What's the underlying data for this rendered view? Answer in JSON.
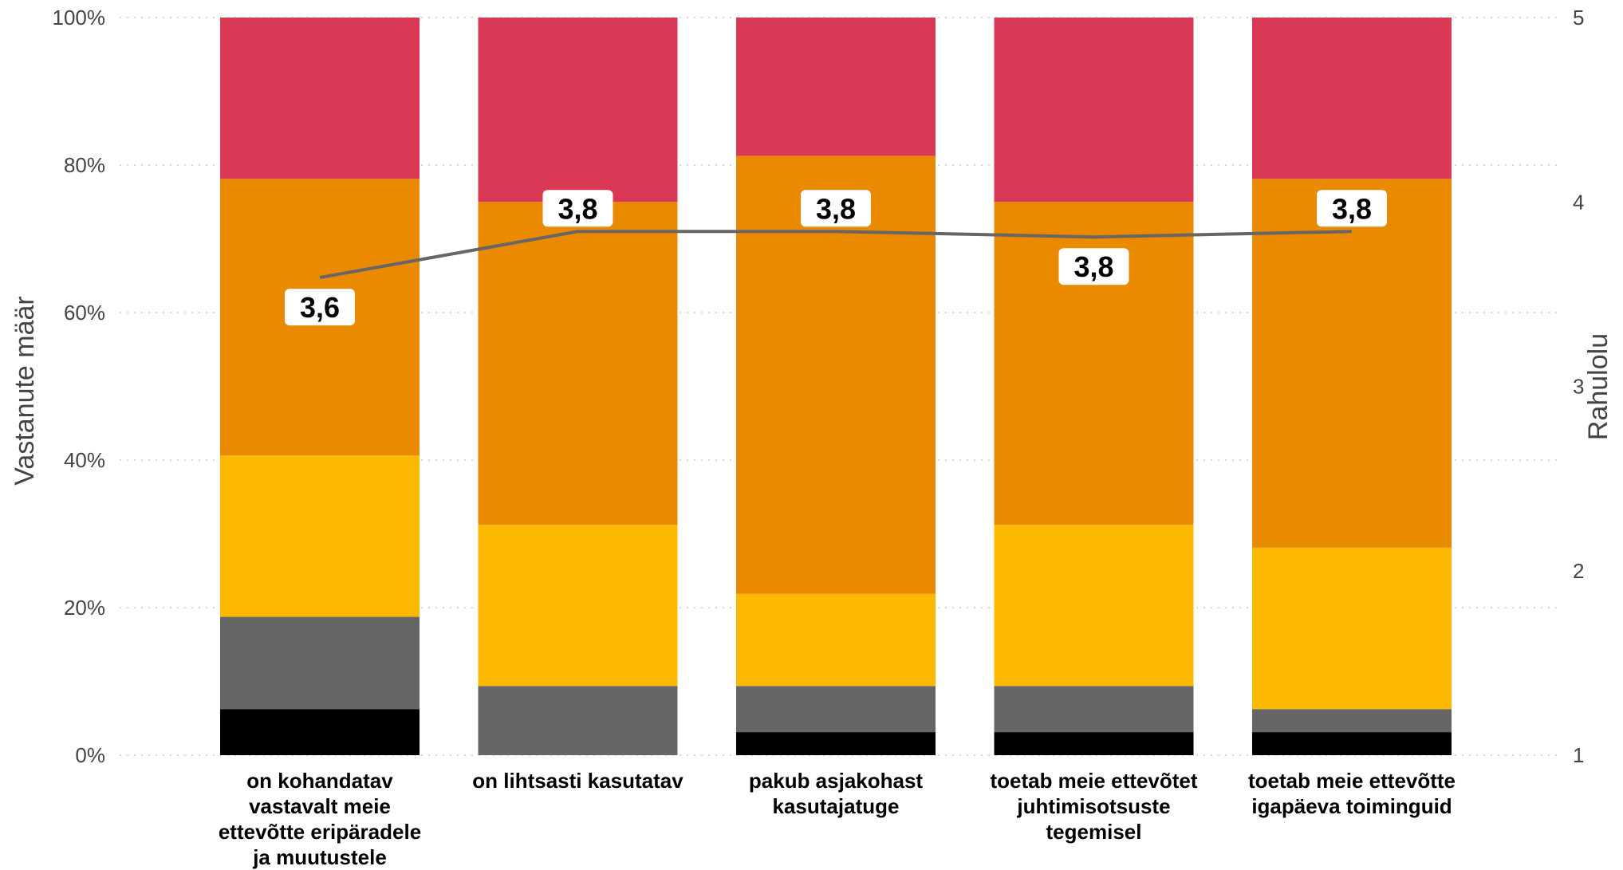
{
  "chart_data": {
    "type": "bar",
    "stacked": true,
    "normalized": true,
    "grid": true,
    "legend": "none",
    "ylabel": "Vastanute määr",
    "y2label": "Rahulolu",
    "y_ticks": [
      "0%",
      "20%",
      "40%",
      "60%",
      "80%",
      "100%"
    ],
    "y2_ticks": [
      "1",
      "2",
      "3",
      "4",
      "5"
    ],
    "ylim": [
      0,
      100
    ],
    "y2lim": [
      1,
      5
    ],
    "categories": [
      [
        "on kohandatav",
        "vastavalt meie",
        "ettevõtte eripäradele",
        "ja muutustele"
      ],
      [
        "on lihtsasti kasutatav"
      ],
      [
        "pakub asjakohast",
        "kasutajatuge"
      ],
      [
        "toetab meie ettevõtet",
        "juhtimisotsuste",
        "tegemisel"
      ],
      [
        "toetab meie ettevõtte",
        "igapäeva toiminguid"
      ]
    ],
    "series": [
      {
        "color": "#000000",
        "values": [
          6.25,
          0,
          3.125,
          3.125,
          3.125
        ]
      },
      {
        "color": "#666666",
        "values": [
          12.5,
          9.375,
          6.25,
          6.25,
          3.125
        ]
      },
      {
        "color": "#fdb800",
        "values": [
          21.875,
          21.875,
          12.5,
          21.875,
          21.875
        ]
      },
      {
        "color": "#e98a00",
        "values": [
          37.5,
          43.75,
          59.375,
          43.75,
          50
        ]
      },
      {
        "color": "#d93954",
        "values": [
          21.875,
          25,
          18.75,
          25,
          21.875
        ]
      }
    ],
    "line": {
      "color": "#666666",
      "values": [
        3.59,
        3.84,
        3.84,
        3.81,
        3.84
      ],
      "labels": [
        "3,6",
        "3,8",
        "3,8",
        "3,8",
        "3,8"
      ]
    }
  }
}
